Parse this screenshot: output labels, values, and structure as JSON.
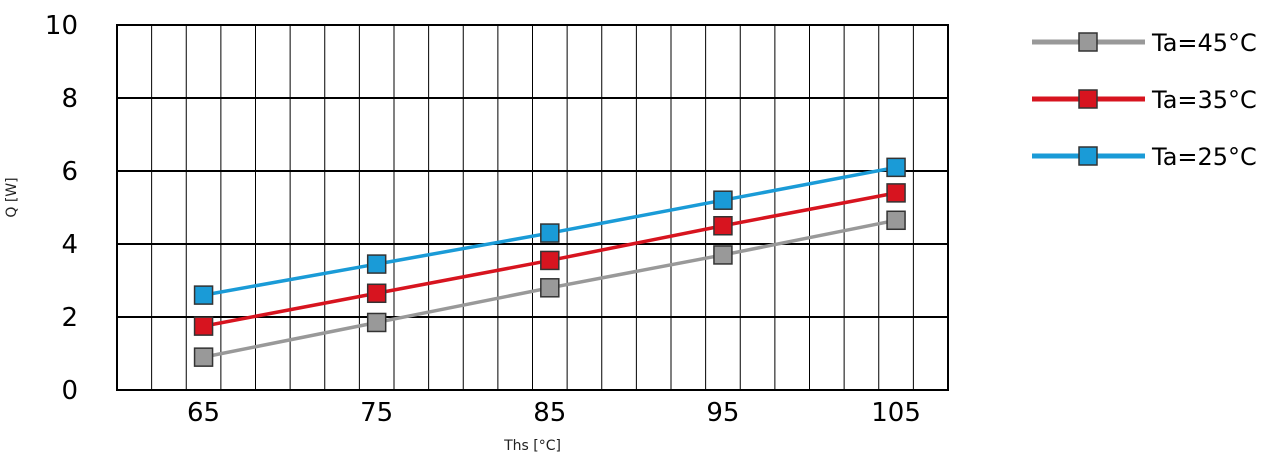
{
  "chart_data": {
    "type": "line",
    "title": "",
    "xlabel": "Ths [°C]",
    "ylabel": "Q [W]",
    "x": [
      65,
      75,
      85,
      95,
      105
    ],
    "x_ticks": [
      "65",
      "75",
      "85",
      "95",
      "105"
    ],
    "y_ticks": [
      "0",
      "2",
      "4",
      "6",
      "8",
      "10"
    ],
    "xlim": [
      60,
      108
    ],
    "ylim": [
      0,
      10
    ],
    "grid": true,
    "legend_position": "right",
    "series": [
      {
        "name": "Ta=45°C",
        "color": "#999999",
        "values": [
          0.9,
          1.85,
          2.8,
          3.7,
          4.65
        ]
      },
      {
        "name": "Ta=35°C",
        "color": "#d7141f",
        "values": [
          1.75,
          2.65,
          3.55,
          4.5,
          5.4
        ]
      },
      {
        "name": "Ta=25°C",
        "color": "#1a9bd7",
        "values": [
          2.6,
          3.45,
          4.3,
          5.2,
          6.1
        ]
      }
    ]
  }
}
